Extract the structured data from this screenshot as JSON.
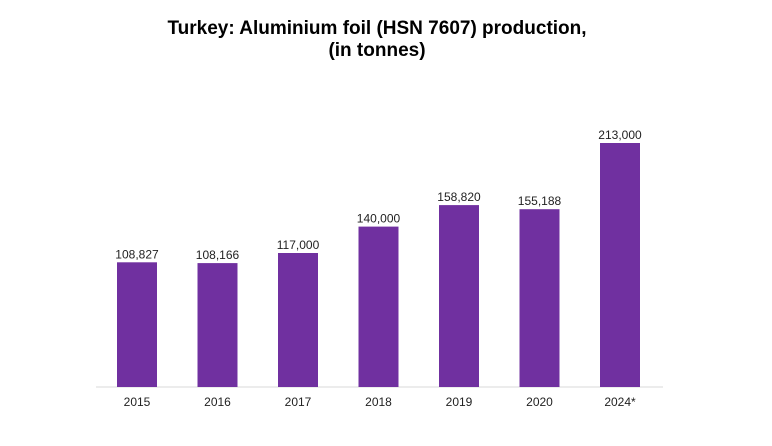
{
  "chart_data": {
    "type": "bar",
    "title_line1": "Turkey: Aluminium foil (HSN 7607) production,",
    "title_line2": "(in tonnes)",
    "xlabel": "",
    "ylabel": "",
    "categories": [
      "2015",
      "2016",
      "2017",
      "2018",
      "2019",
      "2020",
      "2024*"
    ],
    "values": [
      108827,
      108166,
      117000,
      140000,
      158820,
      155188,
      213000
    ],
    "value_labels": [
      "108,827",
      "108,166",
      "117,000",
      "140,000",
      "158,820",
      "155,188",
      "213,000"
    ],
    "ylim": [
      0,
      213000
    ],
    "grid": false,
    "legend": "none",
    "bar_color": "#7030a0",
    "axis_color": "#d9d9d9"
  }
}
